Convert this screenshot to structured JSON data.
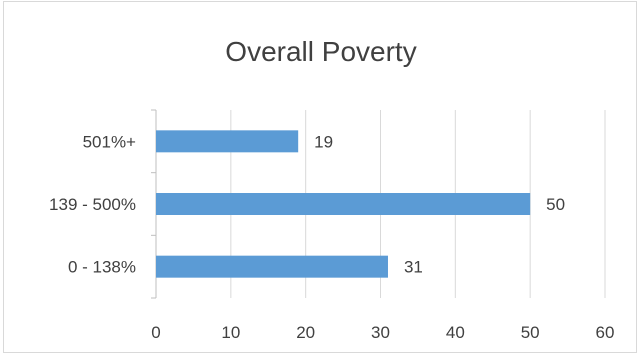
{
  "chart_data": {
    "type": "bar",
    "orientation": "horizontal",
    "title": "Overall Poverty",
    "categories": [
      "0 - 138%",
      "139 - 500%",
      "501%+"
    ],
    "values": [
      31,
      50,
      19
    ],
    "data_labels": [
      "31",
      "50",
      "19"
    ],
    "xlim": [
      0,
      60
    ],
    "x_ticks": [
      0,
      10,
      20,
      30,
      40,
      50,
      60
    ],
    "x_tick_labels": [
      "0",
      "10",
      "20",
      "30",
      "40",
      "50",
      "60"
    ],
    "xlabel": "",
    "ylabel": "",
    "grid": "vertical",
    "legend": "none",
    "colors": {
      "bar": "#5b9bd5",
      "grid": "#d9d9d9",
      "axis": "#bfbfbf",
      "text": "#404040"
    }
  }
}
